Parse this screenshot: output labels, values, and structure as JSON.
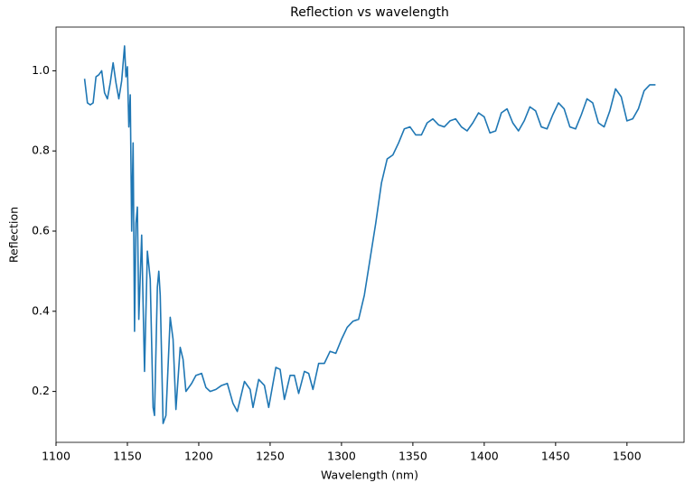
{
  "chart_data": {
    "type": "line",
    "title": "Reflection vs wavelength",
    "xlabel": "Wavelength (nm)",
    "ylabel": "Reflection",
    "x": [
      1120,
      1122,
      1124,
      1126,
      1128,
      1130,
      1132,
      1134,
      1136,
      1138,
      1140,
      1142,
      1144,
      1146,
      1148,
      1149,
      1150,
      1151,
      1152,
      1153,
      1154,
      1155,
      1156,
      1157,
      1158,
      1160,
      1162,
      1164,
      1166,
      1168,
      1169,
      1171,
      1172,
      1173,
      1175,
      1177,
      1180,
      1182,
      1184,
      1187,
      1189,
      1191,
      1195,
      1198,
      1202,
      1205,
      1208,
      1212,
      1216,
      1220,
      1224,
      1227,
      1232,
      1236,
      1238,
      1242,
      1246,
      1249,
      1254,
      1257,
      1260,
      1264,
      1267,
      1270,
      1274,
      1277,
      1280,
      1284,
      1288,
      1292,
      1296,
      1300,
      1304,
      1308,
      1312,
      1316,
      1320,
      1324,
      1328,
      1332,
      1336,
      1340,
      1344,
      1348,
      1352,
      1356,
      1360,
      1364,
      1368,
      1372,
      1376,
      1380,
      1384,
      1388,
      1392,
      1396,
      1400,
      1404,
      1408,
      1412,
      1416,
      1420,
      1424,
      1428,
      1432,
      1436,
      1440,
      1444,
      1448,
      1452,
      1456,
      1460,
      1464,
      1468,
      1472,
      1476,
      1480,
      1484,
      1488,
      1492,
      1496,
      1500,
      1504,
      1508,
      1512,
      1516,
      1520
    ],
    "series": [
      {
        "color": "#1f77b4",
        "values": [
          0.98,
          0.92,
          0.915,
          0.92,
          0.985,
          0.99,
          1.0,
          0.945,
          0.93,
          0.97,
          1.02,
          0.97,
          0.93,
          0.975,
          1.062,
          0.985,
          1.01,
          0.86,
          0.94,
          0.6,
          0.82,
          0.35,
          0.62,
          0.66,
          0.38,
          0.59,
          0.25,
          0.55,
          0.48,
          0.16,
          0.14,
          0.46,
          0.5,
          0.44,
          0.12,
          0.14,
          0.385,
          0.33,
          0.155,
          0.31,
          0.28,
          0.2,
          0.22,
          0.24,
          0.245,
          0.21,
          0.2,
          0.205,
          0.215,
          0.22,
          0.17,
          0.15,
          0.225,
          0.205,
          0.16,
          0.23,
          0.215,
          0.16,
          0.26,
          0.255,
          0.18,
          0.24,
          0.24,
          0.195,
          0.25,
          0.245,
          0.205,
          0.27,
          0.27,
          0.3,
          0.295,
          0.33,
          0.36,
          0.375,
          0.38,
          0.44,
          0.53,
          0.62,
          0.72,
          0.78,
          0.79,
          0.82,
          0.855,
          0.86,
          0.84,
          0.84,
          0.87,
          0.88,
          0.865,
          0.86,
          0.875,
          0.88,
          0.86,
          0.85,
          0.87,
          0.895,
          0.885,
          0.845,
          0.85,
          0.895,
          0.905,
          0.87,
          0.85,
          0.875,
          0.91,
          0.9,
          0.86,
          0.855,
          0.89,
          0.92,
          0.905,
          0.86,
          0.855,
          0.89,
          0.93,
          0.92,
          0.87,
          0.86,
          0.9,
          0.955,
          0.935,
          0.875,
          0.88,
          0.905,
          0.95,
          0.965,
          0.965
        ]
      }
    ],
    "xlim": [
      1100,
      1540
    ],
    "ylim": [
      0.073,
      1.109
    ],
    "xticks": [
      1100,
      1150,
      1200,
      1250,
      1300,
      1350,
      1400,
      1450,
      1500
    ],
    "yticks": [
      0.2,
      0.4,
      0.6,
      0.8,
      {
        "value": 1,
        "label": "1.0"
      }
    ]
  }
}
